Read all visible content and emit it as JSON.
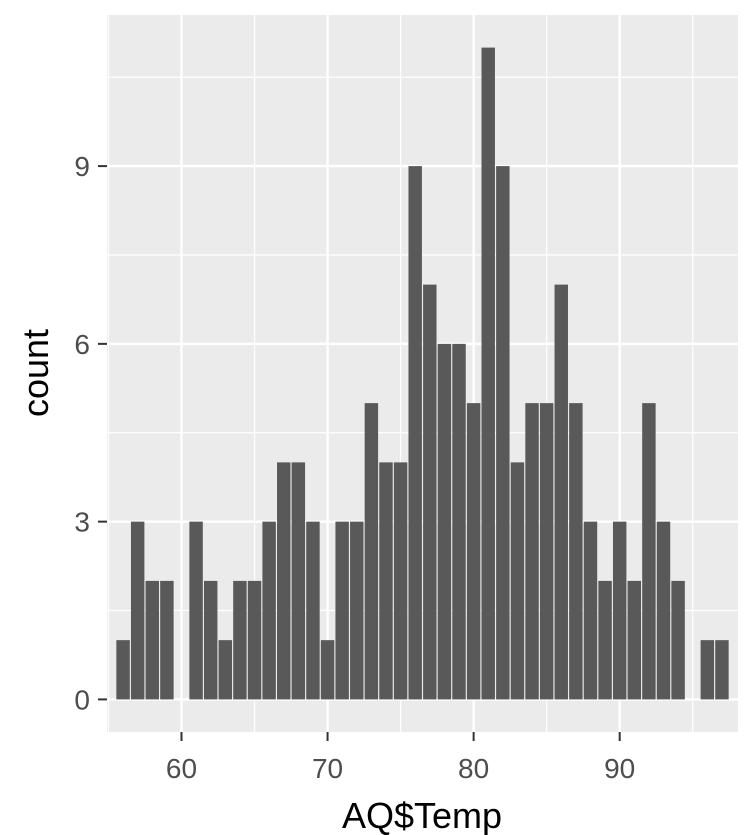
{
  "chart_data": {
    "type": "bar",
    "xlabel": "AQ$Temp",
    "ylabel": "count",
    "x": [
      56,
      57,
      58,
      59,
      60,
      61,
      62,
      63,
      64,
      65,
      66,
      67,
      68,
      69,
      70,
      71,
      72,
      73,
      74,
      75,
      76,
      77,
      78,
      79,
      80,
      81,
      82,
      83,
      84,
      85,
      86,
      87,
      88,
      89,
      90,
      91,
      92,
      93,
      94,
      95,
      96,
      97
    ],
    "values": [
      1,
      3,
      2,
      2,
      0,
      3,
      2,
      1,
      2,
      2,
      3,
      4,
      4,
      3,
      1,
      3,
      3,
      5,
      4,
      4,
      9,
      7,
      6,
      6,
      5,
      11,
      9,
      4,
      5,
      5,
      7,
      5,
      3,
      2,
      3,
      2,
      5,
      3,
      2,
      0,
      1,
      1
    ],
    "xlim": [
      54.9,
      98.1
    ],
    "ylim": [
      -0.55,
      11.55
    ],
    "x_ticks": [
      60,
      70,
      80,
      90
    ],
    "x_tick_labels": [
      "60",
      "70",
      "80",
      "90"
    ],
    "y_ticks": [
      0,
      3,
      6,
      9
    ],
    "y_tick_labels": [
      "0",
      "3",
      "6",
      "9"
    ],
    "grid": true,
    "colors": {
      "panel": "#ebebeb",
      "grid": "#ffffff",
      "bar": "#595959",
      "tick": "#333333",
      "tick_label": "#4d4d4d"
    }
  }
}
